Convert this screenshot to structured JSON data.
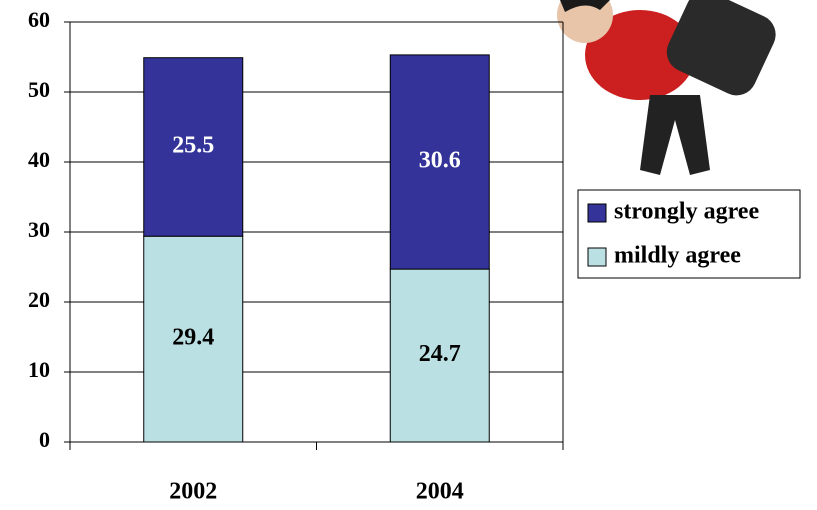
{
  "chart_data": {
    "type": "stacked-bar",
    "categories": [
      "2002",
      "2004"
    ],
    "series": [
      {
        "name": "mildly agree",
        "color": "#bbe0e3",
        "label_color": "#000000",
        "values": [
          29.4,
          24.7
        ]
      },
      {
        "name": "strongly agree",
        "color": "#333399",
        "label_color": "#ffffff",
        "values": [
          25.5,
          30.6
        ]
      }
    ],
    "ylim": [
      0,
      60
    ],
    "yticks": [
      0,
      10,
      20,
      30,
      40,
      50,
      60
    ],
    "grid": true,
    "legend": "right"
  }
}
